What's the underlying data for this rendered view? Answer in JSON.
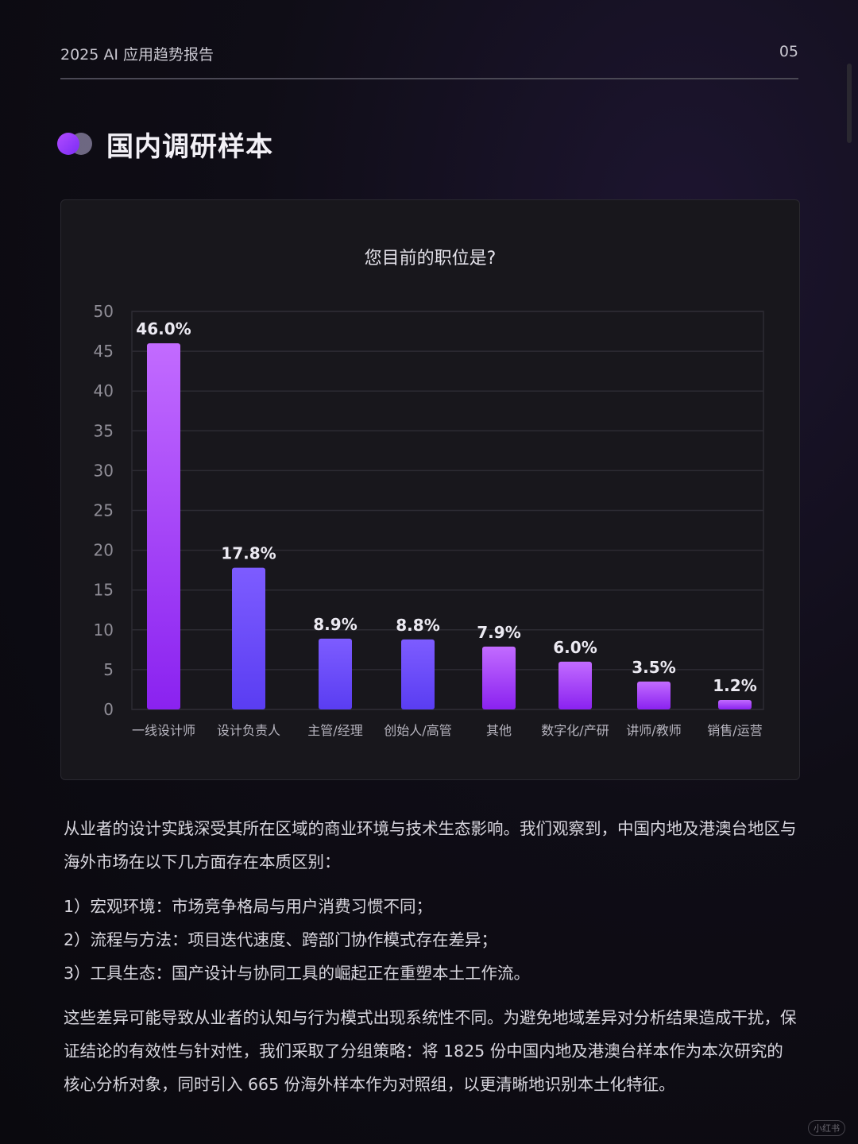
{
  "header": {
    "report_title": "2025 AI 应用趋势报告",
    "page_number": "05"
  },
  "section": {
    "title": "国内调研样本"
  },
  "chart_data": {
    "type": "bar",
    "title": "您目前的职位是?",
    "categories": [
      "一线设计师",
      "设计负责人",
      "主管/经理",
      "创始人/高管",
      "其他",
      "数字化/产研",
      "讲师/教师",
      "销售/运营"
    ],
    "values": [
      46.0,
      17.8,
      8.9,
      8.8,
      7.9,
      6.0,
      3.5,
      1.2
    ],
    "value_labels": [
      "46.0%",
      "17.8%",
      "8.9%",
      "8.8%",
      "7.9%",
      "6.0%",
      "3.5%",
      "1.2%"
    ],
    "ylim": [
      0,
      50
    ],
    "yticks": [
      0,
      5,
      10,
      15,
      20,
      25,
      30,
      35,
      40,
      45,
      50
    ],
    "grid": true,
    "colors": {
      "bar_purple_top": "#c26bff",
      "bar_purple_bottom": "#8a22f0",
      "bar_blue_top": "#7d5cff",
      "bar_blue_bottom": "#5a3df2",
      "grid": "#2c2b33"
    }
  },
  "body": {
    "paragraph1": "从业者的设计实践深受其所在区域的商业环境与技术生态影响。我们观察到，中国内地及港澳台地区与海外市场在以下几方面存在本质区别：",
    "list": [
      "1）宏观环境：市场竞争格局与用户消费习惯不同；",
      "2）流程与方法：项目迭代速度、跨部门协作模式存在差异；",
      "3）工具生态：国产设计与协同工具的崛起正在重塑本土工作流。"
    ],
    "paragraph2": "这些差异可能导致从业者的认知与行为模式出现系统性不同。为避免地域差异对分析结果造成干扰，保证结论的有效性与针对性，我们采取了分组策略：将 1825 份中国内地及港澳台样本作为本次研究的核心分析对象，同时引入 665 份海外样本作为对照组，以更清晰地识别本土化特征。"
  },
  "watermark": "小红书"
}
